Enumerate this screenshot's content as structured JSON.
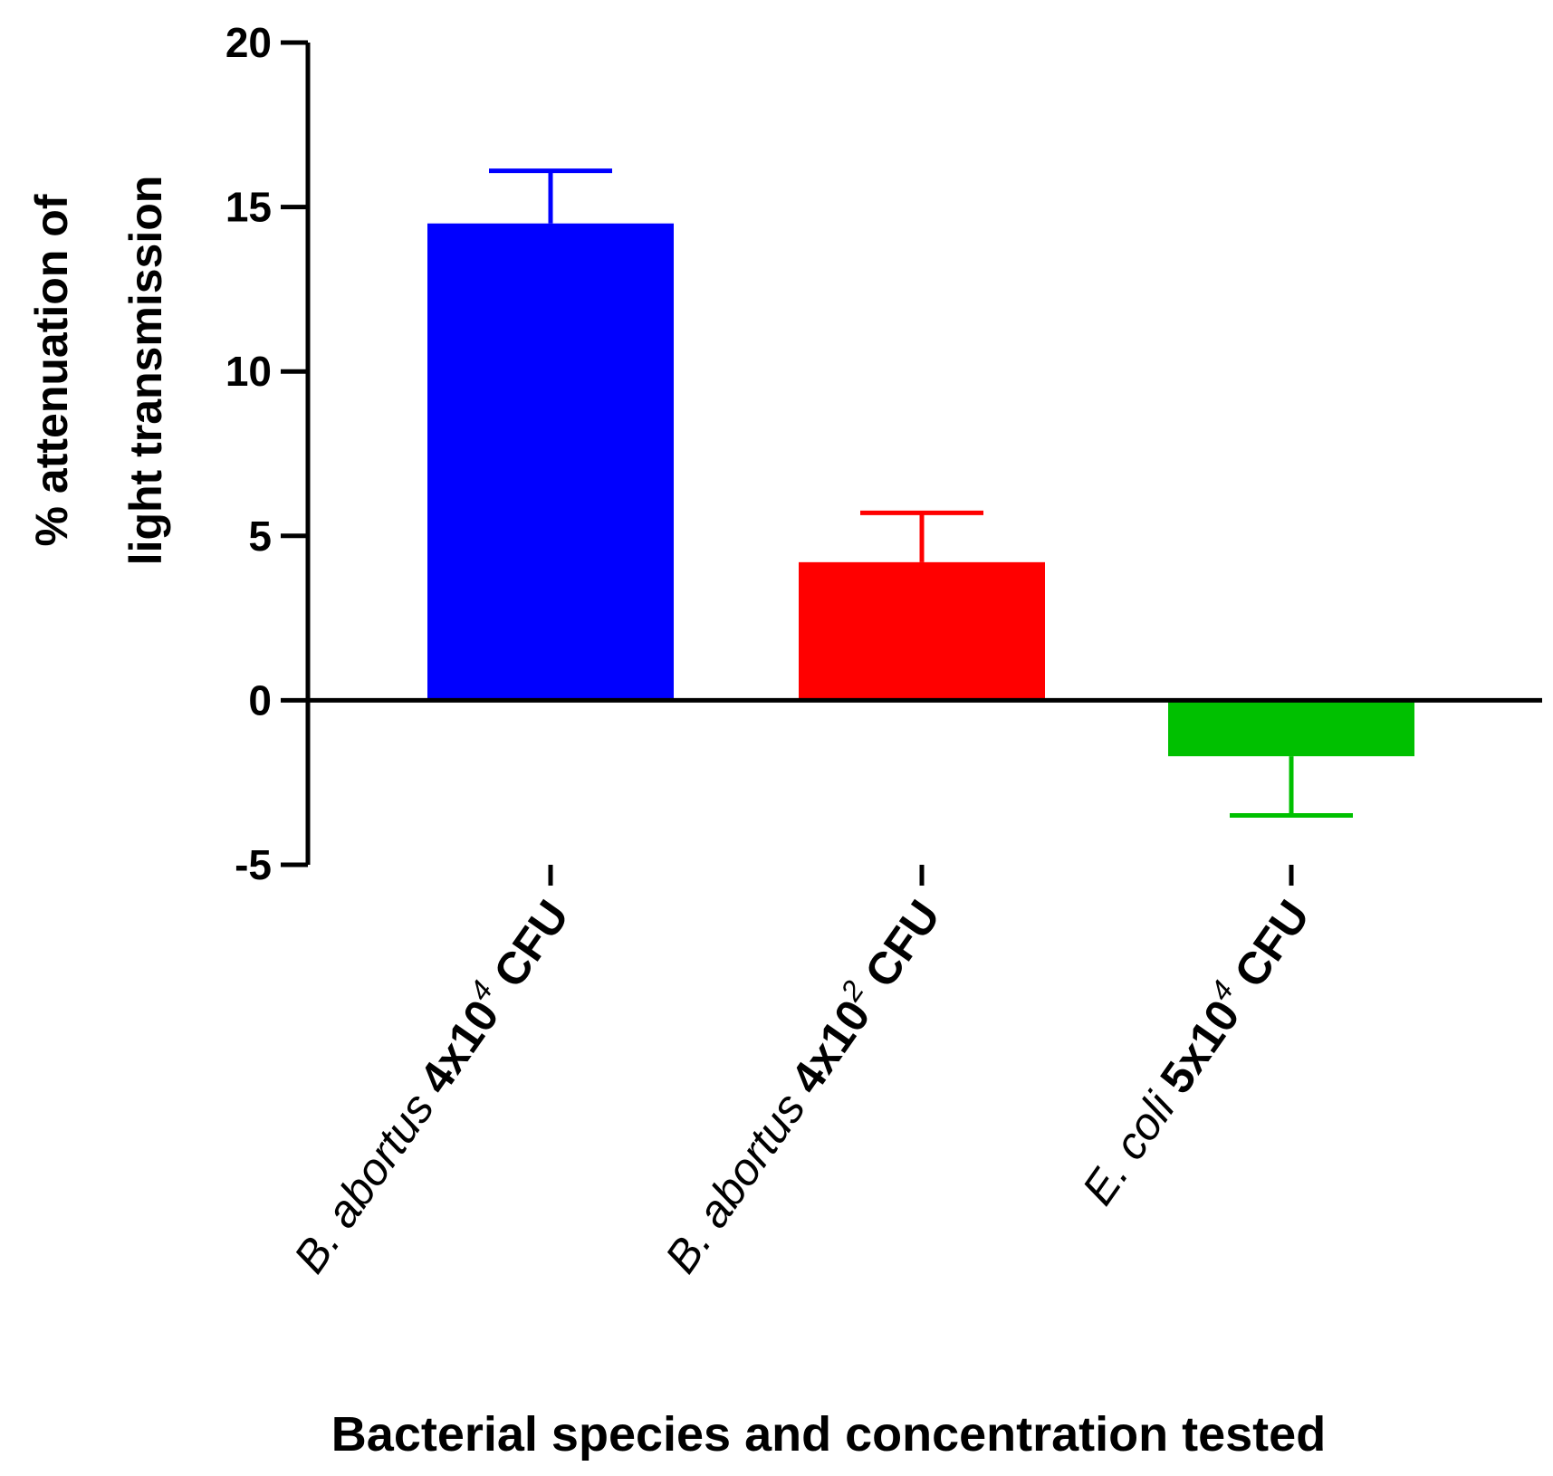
{
  "chart_data": {
    "type": "bar",
    "title": "",
    "xlabel": "Bacterial species and concentration tested",
    "ylabel_lines": [
      "% attenuation of",
      "light transmission"
    ],
    "ylim": [
      -5,
      20
    ],
    "yticks": [
      -5,
      0,
      5,
      10,
      15,
      20
    ],
    "categories": [
      {
        "species": "B. abortus",
        "coef": "4x10",
        "exp": "4",
        "unit": "CFU"
      },
      {
        "species": "B. abortus",
        "coef": "4x10",
        "exp": "2",
        "unit": "CFU"
      },
      {
        "species": "E. coli",
        "coef": "5x10",
        "exp": "4",
        "unit": "CFU"
      }
    ],
    "values": [
      14.5,
      4.2,
      -1.7
    ],
    "errors": [
      1.6,
      1.5,
      1.8
    ],
    "colors": [
      "#0000ff",
      "#ff0000",
      "#00c000"
    ]
  }
}
